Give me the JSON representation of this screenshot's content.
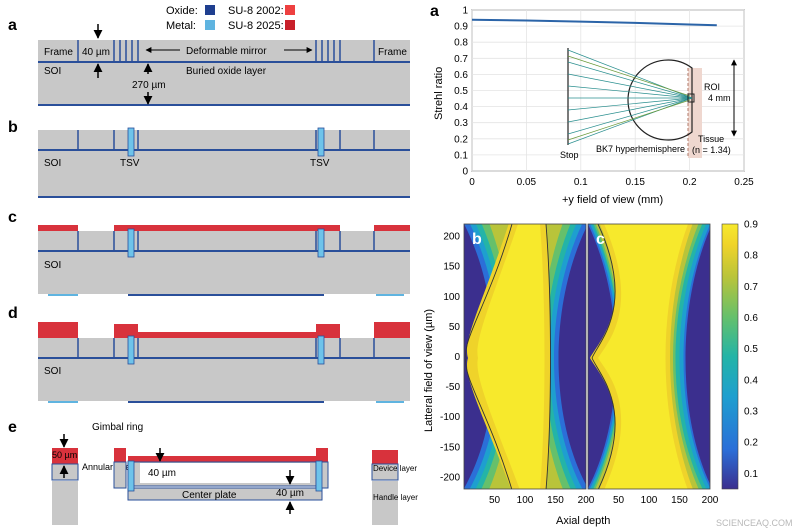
{
  "legend": {
    "oxide": "Oxide:",
    "metal": "Metal:",
    "su8_2002": "SU-8 2002:",
    "su8_2025": "SU-8 2025:",
    "colors": {
      "oxide": "#1f3f8f",
      "metal": "#5fb4e0",
      "su8_2002": "#ee4040",
      "su8_2025": "#c8202a"
    }
  },
  "colors": {
    "silicon": "#c8c8c8",
    "line": "#2a4f9a",
    "su8": "#d8323c",
    "metal": "#6ec3ea",
    "curve": "#2b64a8",
    "tissue": "#efd7cf"
  },
  "fabrication": {
    "a": {
      "letter": "a",
      "frame_left": "Frame",
      "frame_right": "Frame",
      "thickness_40": "40 µm",
      "mirror_label": "Deformable mirror",
      "soi": "SOI",
      "buried_oxide": "Buried oxide layer",
      "thickness_270": "270 µm"
    },
    "b": {
      "letter": "b",
      "soi": "SOI",
      "tsv_left": "TSV",
      "tsv_right": "TSV"
    },
    "c": {
      "letter": "c",
      "soi": "SOI"
    },
    "d": {
      "letter": "d",
      "soi": "SOI"
    },
    "e": {
      "letter": "e",
      "gimbal_ring": "Gimbal ring",
      "thickness_50": "50 µm",
      "annular_aperture": "Annular aperture",
      "gap_40": "40 µm",
      "thickness_40": "40 µm",
      "center_plate": "Center plate",
      "device_layer": "Device layer",
      "handle_layer": "Handle layer"
    }
  },
  "strehl": {
    "letter": "a",
    "ylabel": "Strehl ratio",
    "xlabel": "+y field of view (mm)",
    "x_ticks": [
      "0",
      "0.05",
      "0.1",
      "0.15",
      "0.2",
      "0.25"
    ],
    "y_ticks": [
      "0",
      "0.1",
      "0.2",
      "0.3",
      "0.4",
      "0.5",
      "0.6",
      "0.7",
      "0.8",
      "0.9",
      "1"
    ],
    "inset": {
      "roi": "ROI",
      "depth": "4 mm",
      "tissue": "Tissue",
      "tissue_index": "(n = 1.34)",
      "lens": "BK7 hyperhemisphere",
      "stop": "Stop"
    }
  },
  "heatmaps": {
    "panel_b": "b",
    "panel_c": "c",
    "ylabel": "Latteral field of view (µm)",
    "xlabel": "Axial depth",
    "y_ticks": [
      "200",
      "150",
      "100",
      "50",
      "0",
      "-50",
      "-100",
      "-150",
      "-200"
    ],
    "x_ticks_b": [
      "50",
      "100",
      "150",
      "200"
    ],
    "x_ticks_c": [
      "50",
      "100",
      "150",
      "200"
    ],
    "colorbar_ticks": [
      "0.9",
      "0.8",
      "0.7",
      "0.6",
      "0.5",
      "0.4",
      "0.3",
      "0.2",
      "0.1"
    ]
  },
  "chart_data": [
    {
      "type": "line",
      "title": "",
      "xlabel": "+y field of view (mm)",
      "ylabel": "Strehl ratio",
      "xlim": [
        0,
        0.25
      ],
      "ylim": [
        0,
        1
      ],
      "grid": true,
      "x": [
        0,
        0.05,
        0.1,
        0.15,
        0.2,
        0.225
      ],
      "series": [
        {
          "values": [
            0.94,
            0.935,
            0.928,
            0.92,
            0.91,
            0.905
          ]
        }
      ]
    },
    {
      "type": "heatmap",
      "xlabel": "Axial depth",
      "ylabel": "Latteral field of view (µm)",
      "xlim": [
        0,
        200
      ],
      "ylim": [
        -220,
        220
      ],
      "value_range": [
        0.05,
        0.9
      ],
      "note_b": "yellow core narrowing toward |y|=220",
      "note_c": "wider yellow core"
    }
  ],
  "watermark": "SCIENCEAQ.COM"
}
